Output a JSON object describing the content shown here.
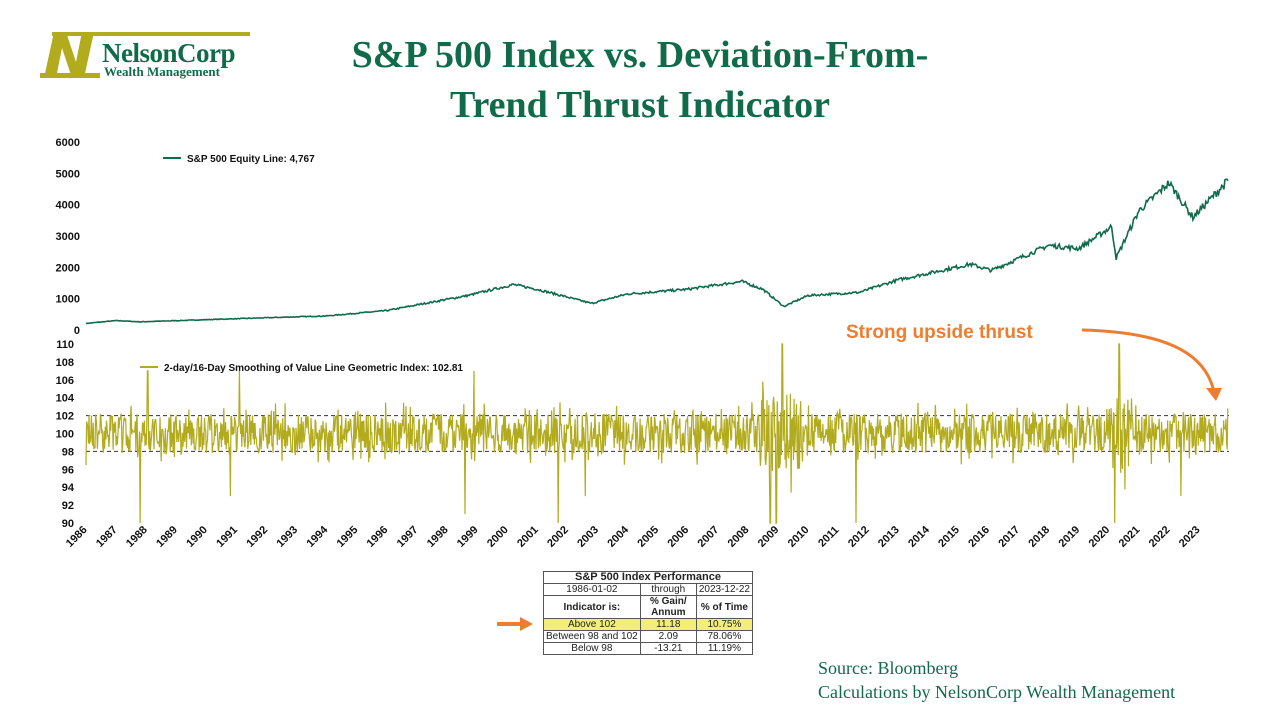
{
  "header": {
    "brand_name": "NelsonCorp",
    "brand_sub": "Wealth Management",
    "title_line1": "S&P 500 Index vs. Deviation-From-",
    "title_line2": "Trend Thrust Indicator"
  },
  "colors": {
    "green": "#0f6b4a",
    "olive": "#b3ab1e",
    "orange": "#ed7d31",
    "highlight": "#f3ee7a"
  },
  "chart_data": [
    {
      "type": "line",
      "legend": "S&P 500 Equity Line: 4,767",
      "ylim": [
        0,
        6000
      ],
      "yticks": [
        0,
        1000,
        2000,
        3000,
        4000,
        5000,
        6000
      ],
      "x": [
        1986,
        1987,
        1987.8,
        1990,
        1994,
        1996,
        1998,
        1998.7,
        2000.2,
        2001,
        2002.8,
        2004,
        2006,
        2007.8,
        2008.5,
        2009.2,
        2010,
        2011.7,
        2013,
        2015.4,
        2016.1,
        2018,
        2019,
        2020.1,
        2020.25,
        2021,
        2022,
        2022.8,
        2023.3,
        2023.97
      ],
      "y": [
        210,
        300,
        260,
        330,
        450,
        620,
        980,
        1100,
        1450,
        1300,
        850,
        1150,
        1300,
        1550,
        1300,
        750,
        1100,
        1200,
        1600,
        2100,
        1900,
        2700,
        2600,
        3300,
        2300,
        3800,
        4700,
        3600,
        4100,
        4767
      ]
    },
    {
      "type": "line",
      "legend": "2-day/16-Day Smoothing of Value Line Geometric Index: 102.81",
      "ylim": [
        90,
        110
      ],
      "yticks": [
        90,
        92,
        94,
        96,
        98,
        100,
        102,
        104,
        106,
        108,
        110
      ],
      "thresholds": [
        98,
        102
      ],
      "spikes": [
        {
          "x": 1987.8,
          "y": 90
        },
        {
          "x": 1988.05,
          "y": 107
        },
        {
          "x": 1990.8,
          "y": 93
        },
        {
          "x": 1991.1,
          "y": 107
        },
        {
          "x": 1998.6,
          "y": 91
        },
        {
          "x": 1998.9,
          "y": 107
        },
        {
          "x": 2001.7,
          "y": 90
        },
        {
          "x": 2002.6,
          "y": 93
        },
        {
          "x": 2008.75,
          "y": 90
        },
        {
          "x": 2008.95,
          "y": 90
        },
        {
          "x": 2009.15,
          "y": 110
        },
        {
          "x": 2011.6,
          "y": 90
        },
        {
          "x": 2020.2,
          "y": 90
        },
        {
          "x": 2020.35,
          "y": 110
        },
        {
          "x": 2022.4,
          "y": 93
        },
        {
          "x": 2023.97,
          "y": 102.81
        }
      ],
      "xticks": [
        "1986",
        "1987",
        "1988",
        "1989",
        "1990",
        "1991",
        "1992",
        "1993",
        "1994",
        "1995",
        "1996",
        "1997",
        "1998",
        "1999",
        "2000",
        "2001",
        "2002",
        "2003",
        "2004",
        "2005",
        "2006",
        "2007",
        "2008",
        "2009",
        "2010",
        "2011",
        "2012",
        "2013",
        "2014",
        "2015",
        "2016",
        "2017",
        "2018",
        "2019",
        "2020",
        "2021",
        "2022",
        "2023"
      ],
      "annotation": "Strong upside thrust"
    }
  ],
  "table": {
    "title": "S&P 500 Index Performance",
    "start": "1986-01-02",
    "through": "through",
    "end": "2023-12-22",
    "col1": "Indicator is:",
    "col2": "% Gain/ Annum",
    "col3": "% of Time",
    "rows": [
      {
        "label": "Above 102",
        "gain": "11.18",
        "time": "10.75%"
      },
      {
        "label": "Between 98 and 102",
        "gain": "2.09",
        "time": "78.06%"
      },
      {
        "label": "Below 98",
        "gain": "-13.21",
        "time": "11.19%"
      }
    ]
  },
  "source": {
    "line1": "Source: Bloomberg",
    "line2": "Calculations by NelsonCorp Wealth Management"
  }
}
